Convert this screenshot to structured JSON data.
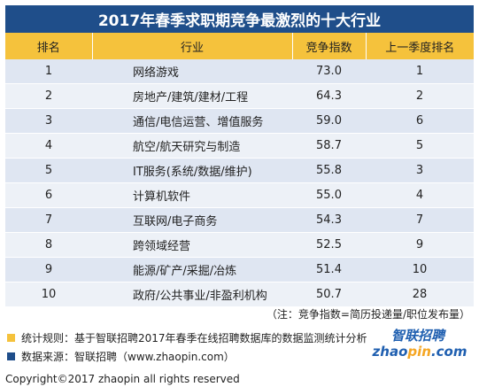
{
  "chart_data": {
    "type": "table",
    "title": "2017年春季求职期竞争最激烈的十大行业",
    "columns": [
      "排名",
      "行业",
      "竞争指数",
      "上一季度排名"
    ],
    "rows": [
      {
        "rank": "1",
        "industry": "网络游戏",
        "score": "73.0",
        "prev": "1"
      },
      {
        "rank": "2",
        "industry": "房地产/建筑/建材/工程",
        "score": "64.3",
        "prev": "2"
      },
      {
        "rank": "3",
        "industry": "通信/电信运营、增值服务",
        "score": "59.0",
        "prev": "6"
      },
      {
        "rank": "4",
        "industry": "航空/航天研究与制造",
        "score": "58.7",
        "prev": "5"
      },
      {
        "rank": "5",
        "industry": "IT服务(系统/数据/维护)",
        "score": "55.8",
        "prev": "3"
      },
      {
        "rank": "6",
        "industry": "计算机软件",
        "score": "55.0",
        "prev": "4"
      },
      {
        "rank": "7",
        "industry": "互联网/电子商务",
        "score": "54.3",
        "prev": "7"
      },
      {
        "rank": "8",
        "industry": "跨领域经营",
        "score": "52.5",
        "prev": "9"
      },
      {
        "rank": "9",
        "industry": "能源/矿产/采掘/冶炼",
        "score": "51.4",
        "prev": "10"
      },
      {
        "rank": "10",
        "industry": "政府/公共事业/非盈利机构",
        "score": "50.7",
        "prev": "28"
      }
    ]
  },
  "note": "（注：竞争指数=简历投递量/职位发布量）",
  "legend": [
    {
      "text": "统计规则：基于智联招聘2017年春季在线招聘数据库的数据监测统计分析",
      "color": "#f5c23c"
    },
    {
      "text": "数据来源：智联招聘（www.zhaopin.com）",
      "color": "#1f4e8a"
    }
  ],
  "logo": {
    "cn": "智联招聘",
    "en_a": "zhao",
    "en_b": "pin",
    "en_c": ".com",
    "color": "#1f5fb0",
    "accent": "#f5a623"
  },
  "copyright": "Copyright©2017 zhaopin all rights reserved"
}
